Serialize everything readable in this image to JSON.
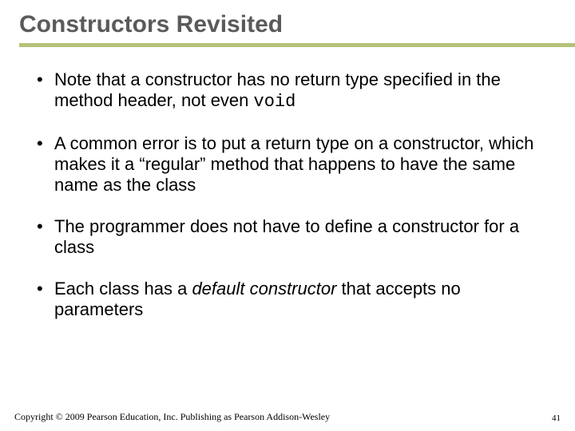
{
  "slide": {
    "title": "Constructors Revisited",
    "title_color": "#5a5a5a",
    "title_fontsize": 30,
    "underline_color": "#b4c27a",
    "underline_height": 5,
    "background_color": "#ffffff",
    "body_fontsize": 22,
    "body_color": "#000000",
    "bullets": [
      {
        "pre": "Note that a constructor has no return type specified in the method header, not even ",
        "code": "void",
        "post": ""
      },
      {
        "pre": "A common error is to put a return type on a constructor, which makes it a “regular” method that happens to have the same name as the class",
        "code": "",
        "post": ""
      },
      {
        "pre": "The programmer does not have to define a constructor for a class",
        "code": "",
        "post": ""
      },
      {
        "pre": "Each class has a ",
        "ital": "default constructor",
        "post": " that accepts no parameters"
      }
    ]
  },
  "footer": {
    "copyright": "Copyright © 2009 Pearson Education, Inc. Publishing as Pearson Addison-Wesley",
    "page_number": "41",
    "copyright_fontsize": 12,
    "pagenum_fontsize": 11
  }
}
